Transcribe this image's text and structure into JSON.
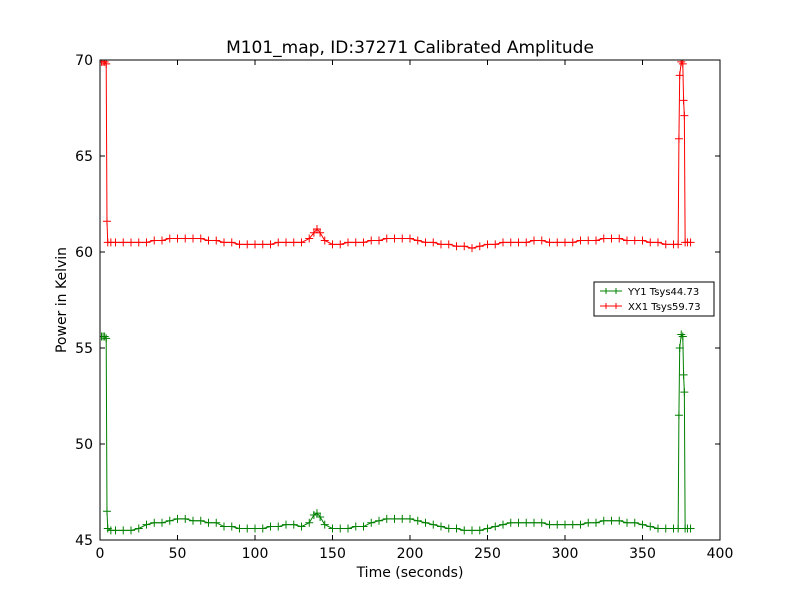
{
  "chart_data": {
    "type": "line",
    "title": "M101_map, ID:37271 Calibrated Amplitude",
    "xlabel": "Time (seconds)",
    "ylabel": "Power in Kelvin",
    "xlim": [
      0,
      400
    ],
    "ylim": [
      45,
      70
    ],
    "xticks": [
      0,
      50,
      100,
      150,
      200,
      250,
      300,
      350,
      400
    ],
    "yticks": [
      45,
      50,
      55,
      60,
      65,
      70
    ],
    "legend_position": "right",
    "grid": false,
    "series": [
      {
        "name": "YY1 Tsys44.73",
        "color": "#008000",
        "marker": "+",
        "points": [
          [
            1,
            55.6
          ],
          [
            2,
            55.6
          ],
          [
            3,
            55.6
          ],
          [
            4,
            55.5
          ],
          [
            4.5,
            46.5
          ],
          [
            5,
            45.6
          ],
          [
            7,
            45.5
          ],
          [
            10,
            45.5
          ],
          [
            15,
            45.5
          ],
          [
            20,
            45.5
          ],
          [
            25,
            45.6
          ],
          [
            30,
            45.8
          ],
          [
            35,
            45.9
          ],
          [
            40,
            45.9
          ],
          [
            45,
            46.0
          ],
          [
            50,
            46.1
          ],
          [
            55,
            46.1
          ],
          [
            60,
            46.0
          ],
          [
            65,
            46.0
          ],
          [
            70,
            45.9
          ],
          [
            75,
            45.9
          ],
          [
            80,
            45.7
          ],
          [
            85,
            45.7
          ],
          [
            90,
            45.6
          ],
          [
            95,
            45.6
          ],
          [
            100,
            45.6
          ],
          [
            105,
            45.6
          ],
          [
            110,
            45.7
          ],
          [
            115,
            45.7
          ],
          [
            120,
            45.8
          ],
          [
            125,
            45.8
          ],
          [
            130,
            45.7
          ],
          [
            135,
            45.9
          ],
          [
            138,
            46.3
          ],
          [
            140,
            46.4
          ],
          [
            142,
            46.2
          ],
          [
            145,
            45.8
          ],
          [
            150,
            45.6
          ],
          [
            155,
            45.6
          ],
          [
            160,
            45.6
          ],
          [
            165,
            45.7
          ],
          [
            170,
            45.7
          ],
          [
            175,
            45.9
          ],
          [
            180,
            46.0
          ],
          [
            185,
            46.1
          ],
          [
            190,
            46.1
          ],
          [
            195,
            46.1
          ],
          [
            200,
            46.1
          ],
          [
            205,
            46.0
          ],
          [
            210,
            45.9
          ],
          [
            215,
            45.8
          ],
          [
            220,
            45.7
          ],
          [
            225,
            45.6
          ],
          [
            230,
            45.6
          ],
          [
            235,
            45.5
          ],
          [
            240,
            45.5
          ],
          [
            245,
            45.5
          ],
          [
            250,
            45.6
          ],
          [
            255,
            45.7
          ],
          [
            260,
            45.8
          ],
          [
            265,
            45.9
          ],
          [
            270,
            45.9
          ],
          [
            275,
            45.9
          ],
          [
            280,
            45.9
          ],
          [
            285,
            45.9
          ],
          [
            290,
            45.8
          ],
          [
            295,
            45.8
          ],
          [
            300,
            45.8
          ],
          [
            305,
            45.8
          ],
          [
            310,
            45.8
          ],
          [
            315,
            45.9
          ],
          [
            320,
            45.9
          ],
          [
            325,
            46.0
          ],
          [
            330,
            46.0
          ],
          [
            335,
            46.0
          ],
          [
            340,
            45.9
          ],
          [
            345,
            45.9
          ],
          [
            350,
            45.8
          ],
          [
            355,
            45.7
          ],
          [
            360,
            45.6
          ],
          [
            365,
            45.6
          ],
          [
            370,
            45.6
          ],
          [
            373,
            45.6
          ],
          [
            373.5,
            51.5
          ],
          [
            374,
            55.0
          ],
          [
            375,
            55.7
          ],
          [
            376,
            55.6
          ],
          [
            376.5,
            53.6
          ],
          [
            377,
            52.7
          ],
          [
            377.5,
            45.6
          ],
          [
            379,
            45.6
          ],
          [
            381,
            45.6
          ]
        ]
      },
      {
        "name": "XX1 Tsys59.73",
        "color": "#ff0000",
        "marker": "+",
        "points": [
          [
            1,
            69.9
          ],
          [
            2,
            69.9
          ],
          [
            3,
            69.9
          ],
          [
            4,
            69.8
          ],
          [
            4.5,
            61.6
          ],
          [
            5,
            60.5
          ],
          [
            7,
            60.5
          ],
          [
            10,
            60.5
          ],
          [
            15,
            60.5
          ],
          [
            20,
            60.5
          ],
          [
            25,
            60.5
          ],
          [
            30,
            60.5
          ],
          [
            35,
            60.6
          ],
          [
            40,
            60.6
          ],
          [
            45,
            60.7
          ],
          [
            50,
            60.7
          ],
          [
            55,
            60.7
          ],
          [
            60,
            60.7
          ],
          [
            65,
            60.7
          ],
          [
            70,
            60.6
          ],
          [
            75,
            60.6
          ],
          [
            80,
            60.5
          ],
          [
            85,
            60.5
          ],
          [
            90,
            60.4
          ],
          [
            95,
            60.4
          ],
          [
            100,
            60.4
          ],
          [
            105,
            60.4
          ],
          [
            110,
            60.4
          ],
          [
            115,
            60.5
          ],
          [
            120,
            60.5
          ],
          [
            125,
            60.5
          ],
          [
            130,
            60.5
          ],
          [
            135,
            60.7
          ],
          [
            138,
            61.0
          ],
          [
            140,
            61.2
          ],
          [
            142,
            61.0
          ],
          [
            145,
            60.6
          ],
          [
            150,
            60.4
          ],
          [
            155,
            60.4
          ],
          [
            160,
            60.5
          ],
          [
            165,
            60.5
          ],
          [
            170,
            60.5
          ],
          [
            175,
            60.6
          ],
          [
            180,
            60.6
          ],
          [
            185,
            60.7
          ],
          [
            190,
            60.7
          ],
          [
            195,
            60.7
          ],
          [
            200,
            60.7
          ],
          [
            205,
            60.6
          ],
          [
            210,
            60.5
          ],
          [
            215,
            60.5
          ],
          [
            220,
            60.4
          ],
          [
            225,
            60.4
          ],
          [
            230,
            60.3
          ],
          [
            235,
            60.3
          ],
          [
            240,
            60.2
          ],
          [
            245,
            60.3
          ],
          [
            250,
            60.4
          ],
          [
            255,
            60.4
          ],
          [
            260,
            60.5
          ],
          [
            265,
            60.5
          ],
          [
            270,
            60.5
          ],
          [
            275,
            60.5
          ],
          [
            280,
            60.6
          ],
          [
            285,
            60.6
          ],
          [
            290,
            60.5
          ],
          [
            295,
            60.5
          ],
          [
            300,
            60.5
          ],
          [
            305,
            60.5
          ],
          [
            310,
            60.6
          ],
          [
            315,
            60.6
          ],
          [
            320,
            60.6
          ],
          [
            325,
            60.7
          ],
          [
            330,
            60.7
          ],
          [
            335,
            60.7
          ],
          [
            340,
            60.6
          ],
          [
            345,
            60.6
          ],
          [
            350,
            60.6
          ],
          [
            355,
            60.5
          ],
          [
            360,
            60.5
          ],
          [
            365,
            60.4
          ],
          [
            370,
            60.4
          ],
          [
            373,
            60.4
          ],
          [
            373.5,
            65.9
          ],
          [
            374,
            69.2
          ],
          [
            375,
            69.9
          ],
          [
            376,
            69.8
          ],
          [
            376.5,
            67.9
          ],
          [
            377,
            67.1
          ],
          [
            377.5,
            60.5
          ],
          [
            379,
            60.5
          ],
          [
            381,
            60.5
          ]
        ]
      }
    ]
  }
}
